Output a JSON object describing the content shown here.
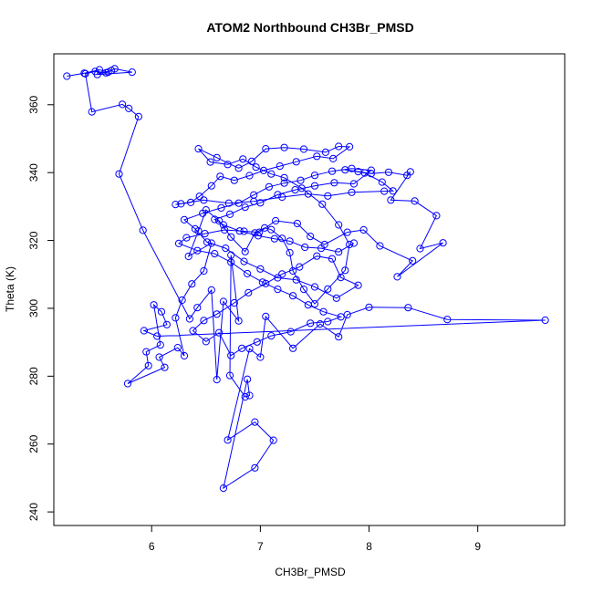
{
  "chart_data": {
    "type": "line",
    "title": "ATOM2 Northbound CH3Br_PMSD",
    "xlabel": "CH3Br_PMSD",
    "ylabel": "Theta (K)",
    "xlim": [
      5.1,
      9.8
    ],
    "ylim": [
      236,
      375
    ],
    "xticks": [
      "6",
      "7",
      "8",
      "9"
    ],
    "yticks": [
      "240",
      "260",
      "280",
      "300",
      "320",
      "340",
      "360"
    ],
    "grid": false,
    "series_color": "#0000ff",
    "markers": "open-circle",
    "series": [
      {
        "points": [
          [
            5.22,
            368.4
          ],
          [
            5.38,
            369.3
          ],
          [
            5.52,
            370.3
          ],
          [
            5.6,
            369.6
          ],
          [
            5.66,
            370.6
          ],
          [
            5.82,
            369.6
          ],
          [
            5.5,
            368.9
          ],
          [
            5.63,
            370.1
          ],
          [
            5.58,
            369.4
          ],
          [
            5.48,
            369.8
          ],
          [
            5.39,
            369.1
          ],
          [
            5.45,
            357.9
          ],
          [
            5.73,
            360.1
          ],
          [
            5.79,
            358.9
          ],
          [
            5.88,
            356.5
          ],
          [
            5.7,
            339.6
          ],
          [
            5.92,
            323.0
          ],
          [
            6.35,
            296.9
          ],
          [
            6.42,
            300.2
          ],
          [
            6.55,
            305.4
          ],
          [
            6.6,
            279.0
          ],
          [
            6.66,
            302.0
          ],
          [
            6.8,
            296.3
          ],
          [
            6.73,
            315.7
          ],
          [
            6.72,
            280.2
          ],
          [
            6.86,
            273.9
          ],
          [
            6.9,
            274.3
          ],
          [
            6.88,
            279.1
          ],
          [
            6.66,
            247.0
          ],
          [
            6.95,
            253.0
          ],
          [
            7.12,
            261.1
          ],
          [
            6.95,
            266.5
          ],
          [
            6.7,
            261.2
          ],
          [
            6.9,
            288.1
          ],
          [
            7.0,
            285.6
          ],
          [
            7.05,
            297.6
          ],
          [
            7.3,
            288.2
          ],
          [
            7.55,
            295.4
          ],
          [
            7.72,
            291.6
          ],
          [
            7.8,
            298.1
          ],
          [
            8.0,
            300.3
          ],
          [
            8.36,
            300.2
          ],
          [
            8.72,
            296.7
          ],
          [
            9.62,
            296.5
          ],
          [
            6.05,
            291.8
          ],
          [
            5.93,
            293.4
          ],
          [
            6.14,
            295.2
          ],
          [
            6.09,
            299.0
          ],
          [
            6.02,
            301.0
          ],
          [
            6.08,
            289.2
          ],
          [
            5.95,
            287.2
          ],
          [
            5.97,
            283.1
          ],
          [
            5.78,
            277.8
          ],
          [
            6.12,
            282.6
          ],
          [
            6.07,
            285.6
          ],
          [
            6.24,
            288.4
          ],
          [
            6.3,
            286.0
          ],
          [
            6.22,
            297.2
          ],
          [
            6.28,
            302.4
          ],
          [
            6.37,
            307.2
          ],
          [
            6.48,
            311.0
          ],
          [
            6.55,
            319.2
          ],
          [
            6.34,
            315.3
          ],
          [
            6.43,
            322.8
          ],
          [
            6.5,
            329.0
          ],
          [
            6.62,
            325.8
          ],
          [
            6.73,
            321.0
          ],
          [
            6.86,
            316.7
          ],
          [
            6.95,
            322.2
          ],
          [
            7.04,
            323.7
          ],
          [
            7.1,
            323.2
          ],
          [
            7.2,
            320.6
          ],
          [
            7.27,
            316.4
          ],
          [
            7.3,
            311.0
          ],
          [
            7.4,
            305.6
          ],
          [
            7.5,
            301.3
          ],
          [
            7.62,
            305.7
          ],
          [
            7.78,
            311.2
          ],
          [
            7.82,
            318.8
          ],
          [
            7.72,
            324.6
          ],
          [
            7.57,
            330.7
          ],
          [
            7.38,
            335.4
          ],
          [
            7.22,
            338.5
          ],
          [
            7.1,
            339.6
          ],
          [
            6.96,
            341.6
          ],
          [
            6.84,
            344.0
          ],
          [
            6.7,
            342.4
          ],
          [
            6.54,
            343.1
          ],
          [
            6.43,
            347.0
          ],
          [
            6.6,
            344.4
          ],
          [
            6.8,
            341.3
          ],
          [
            6.92,
            343.3
          ],
          [
            7.05,
            347.0
          ],
          [
            7.22,
            347.4
          ],
          [
            7.4,
            346.9
          ],
          [
            7.6,
            346.0
          ],
          [
            7.72,
            347.7
          ],
          [
            7.82,
            347.6
          ],
          [
            7.67,
            344.1
          ],
          [
            7.52,
            344.8
          ],
          [
            7.33,
            343.2
          ],
          [
            7.18,
            341.9
          ],
          [
            7.03,
            340.6
          ],
          [
            6.9,
            339.1
          ],
          [
            6.76,
            337.7
          ],
          [
            6.63,
            338.9
          ],
          [
            6.55,
            336.1
          ],
          [
            6.44,
            333.0
          ],
          [
            6.36,
            331.2
          ],
          [
            6.27,
            330.8
          ],
          [
            6.22,
            330.6
          ],
          [
            6.48,
            331.9
          ],
          [
            6.71,
            331.0
          ],
          [
            6.94,
            331.5
          ],
          [
            7.2,
            332.8
          ],
          [
            7.44,
            333.7
          ],
          [
            7.62,
            333.1
          ],
          [
            7.84,
            334.2
          ],
          [
            8.14,
            334.5
          ],
          [
            8.22,
            334.6
          ],
          [
            8.12,
            337.2
          ],
          [
            7.96,
            339.9
          ],
          [
            7.78,
            340.8
          ],
          [
            7.9,
            340.3
          ],
          [
            8.02,
            339.7
          ],
          [
            8.18,
            340.1
          ],
          [
            8.35,
            339.2
          ],
          [
            8.38,
            340.2
          ],
          [
            8.2,
            331.9
          ],
          [
            8.42,
            331.6
          ],
          [
            8.62,
            327.3
          ],
          [
            8.47,
            317.6
          ],
          [
            8.68,
            319.3
          ],
          [
            8.26,
            309.3
          ],
          [
            8.4,
            314.0
          ],
          [
            8.1,
            318.4
          ],
          [
            7.95,
            323.1
          ],
          [
            7.8,
            322.4
          ],
          [
            7.59,
            318.8
          ],
          [
            7.46,
            321.2
          ],
          [
            7.34,
            325.0
          ],
          [
            7.14,
            325.8
          ],
          [
            6.99,
            322.4
          ],
          [
            6.85,
            322.7
          ],
          [
            6.67,
            323.1
          ],
          [
            6.49,
            322.0
          ],
          [
            6.32,
            320.8
          ],
          [
            6.25,
            319.1
          ],
          [
            6.42,
            317.0
          ],
          [
            6.58,
            316.1
          ],
          [
            6.73,
            313.6
          ],
          [
            6.88,
            310.2
          ],
          [
            7.02,
            307.7
          ],
          [
            7.16,
            305.6
          ],
          [
            7.3,
            303.7
          ],
          [
            7.44,
            301.0
          ],
          [
            7.58,
            299.0
          ],
          [
            7.74,
            297.5
          ],
          [
            7.62,
            296.1
          ],
          [
            7.46,
            295.6
          ],
          [
            7.28,
            293.1
          ],
          [
            7.1,
            291.9
          ],
          [
            6.97,
            290.1
          ],
          [
            6.83,
            288.2
          ],
          [
            6.73,
            286.1
          ],
          [
            6.62,
            292.8
          ],
          [
            6.5,
            290.2
          ],
          [
            6.38,
            293.4
          ],
          [
            6.48,
            296.4
          ],
          [
            6.6,
            298.3
          ],
          [
            6.76,
            301.6
          ],
          [
            6.89,
            304.6
          ],
          [
            7.05,
            307.3
          ],
          [
            7.2,
            310.1
          ],
          [
            7.36,
            312.2
          ],
          [
            7.52,
            315.4
          ],
          [
            7.66,
            314.6
          ],
          [
            7.74,
            309.1
          ],
          [
            7.9,
            306.8
          ],
          [
            7.7,
            303.0
          ],
          [
            7.5,
            306.3
          ],
          [
            7.33,
            308.4
          ],
          [
            7.16,
            309.0
          ],
          [
            7.0,
            311.6
          ],
          [
            6.85,
            313.8
          ],
          [
            6.68,
            317.7
          ],
          [
            6.51,
            319.5
          ],
          [
            6.4,
            323.4
          ],
          [
            6.3,
            326.1
          ],
          [
            6.47,
            328.0
          ],
          [
            6.64,
            329.6
          ],
          [
            6.8,
            331.0
          ],
          [
            6.94,
            333.4
          ],
          [
            7.08,
            335.8
          ],
          [
            7.22,
            336.9
          ],
          [
            7.37,
            337.7
          ],
          [
            7.5,
            339.2
          ],
          [
            7.66,
            340.4
          ],
          [
            7.84,
            341.2
          ],
          [
            8.02,
            340.7
          ],
          [
            7.86,
            336.7
          ],
          [
            7.68,
            337.0
          ],
          [
            7.5,
            336.1
          ],
          [
            7.32,
            334.9
          ],
          [
            7.16,
            333.5
          ],
          [
            7.0,
            331.1
          ],
          [
            6.86,
            329.8
          ],
          [
            6.72,
            327.7
          ],
          [
            6.58,
            326.2
          ],
          [
            6.66,
            324.6
          ],
          [
            6.81,
            322.8
          ],
          [
            6.98,
            321.4
          ],
          [
            7.13,
            320.5
          ],
          [
            7.27,
            319.8
          ],
          [
            7.41,
            318.0
          ],
          [
            7.56,
            317.7
          ],
          [
            7.72,
            316.6
          ],
          [
            7.86,
            319.2
          ]
        ]
      }
    ]
  }
}
